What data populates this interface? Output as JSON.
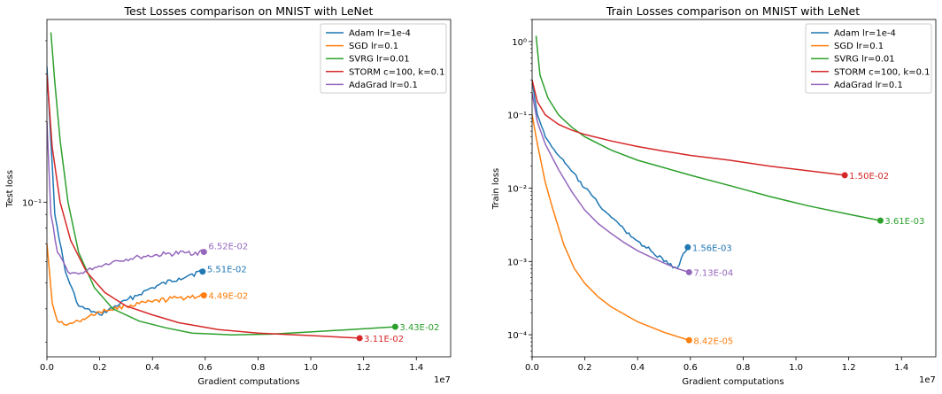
{
  "chart_data": [
    {
      "type": "line",
      "title": "Test Losses comparison on MNIST with LeNet",
      "xlabel": "Gradient computations",
      "ylabel": "Test loss",
      "x_offset_label": "1e7",
      "xlim": [
        0,
        15300000
      ],
      "ylim": [
        0.0265,
        0.48
      ],
      "yscale": "log",
      "xticks": [
        0,
        2000000,
        4000000,
        6000000,
        8000000,
        10000000,
        12000000,
        14000000
      ],
      "xtick_labels": [
        "0.0",
        "0.2",
        "0.4",
        "0.6",
        "0.8",
        "1.0",
        "1.2",
        "1.4"
      ],
      "yticks": [
        0.1
      ],
      "ytick_labels": [
        "10⁻¹"
      ],
      "legend_position": "top-right",
      "series": [
        {
          "name": "Adam lr=1e-4",
          "color": "#1f77b4",
          "noisy": true,
          "end_label": "5.51E-02",
          "x": [
            0,
            300000,
            700000,
            1200000,
            2000000,
            3000000,
            4000000,
            5000000,
            5500000,
            5900000
          ],
          "y": [
            0.32,
            0.09,
            0.055,
            0.041,
            0.038,
            0.043,
            0.048,
            0.052,
            0.054,
            0.0551
          ]
        },
        {
          "name": "SGD lr=0.1",
          "color": "#ff7f0e",
          "noisy": true,
          "end_label": "4.49E-02",
          "x": [
            0,
            200000,
            400000,
            800000,
            1200000,
            2000000,
            3000000,
            4000000,
            5000000,
            5950000
          ],
          "y": [
            0.07,
            0.042,
            0.036,
            0.035,
            0.036,
            0.039,
            0.041,
            0.0425,
            0.044,
            0.0449
          ]
        },
        {
          "name": "SVRG lr=0.01",
          "color": "#2ca02c",
          "noisy": false,
          "end_label": "3.43E-02",
          "x": [
            150000,
            300000,
            500000,
            800000,
            1200000,
            1800000,
            2500000,
            3500000,
            4500000,
            5500000,
            7000000,
            8500000,
            10000000,
            11500000,
            13200000
          ],
          "y": [
            0.43,
            0.28,
            0.17,
            0.1,
            0.065,
            0.048,
            0.04,
            0.036,
            0.034,
            0.0325,
            0.032,
            0.0322,
            0.0328,
            0.0335,
            0.0343
          ]
        },
        {
          "name": "STORM c=100, k=0.1",
          "color": "#d62728",
          "noisy": false,
          "end_label": "3.11E-02",
          "x": [
            0,
            200000,
            500000,
            900000,
            1500000,
            2200000,
            3000000,
            4000000,
            5000000,
            6500000,
            8000000,
            10000000,
            11850000
          ],
          "y": [
            0.3,
            0.16,
            0.1,
            0.072,
            0.055,
            0.046,
            0.041,
            0.038,
            0.0355,
            0.0335,
            0.0325,
            0.0318,
            0.0311
          ]
        },
        {
          "name": "AdaGrad lr=0.1",
          "color": "#9467bd",
          "noisy": true,
          "end_label": "6.52E-02",
          "x": [
            0,
            150000,
            400000,
            800000,
            1200000,
            1800000,
            2500000,
            3500000,
            4500000,
            5300000,
            5950000
          ],
          "y": [
            0.2,
            0.09,
            0.065,
            0.055,
            0.054,
            0.057,
            0.06,
            0.0625,
            0.064,
            0.0648,
            0.0652
          ]
        }
      ]
    },
    {
      "type": "line",
      "title": "Train Losses comparison on MNIST with LeNet",
      "xlabel": "Gradient computations",
      "ylabel": "Train loss",
      "x_offset_label": "1e7",
      "xlim": [
        0,
        15300000
      ],
      "ylim": [
        5e-05,
        2.0
      ],
      "yscale": "log",
      "xticks": [
        0,
        2000000,
        4000000,
        6000000,
        8000000,
        10000000,
        12000000,
        14000000
      ],
      "xtick_labels": [
        "0.0",
        "0.2",
        "0.4",
        "0.6",
        "0.8",
        "1.0",
        "1.2",
        "1.4"
      ],
      "yticks": [
        0.0001,
        0.001,
        0.01,
        0.1,
        1
      ],
      "ytick_labels": [
        "10⁻⁴",
        "10⁻³",
        "10⁻²",
        "10⁻¹",
        "10⁰"
      ],
      "legend_position": "top-right",
      "series": [
        {
          "name": "Adam lr=1e-4",
          "color": "#1f77b4",
          "noisy": true,
          "end_label": "1.56E-03",
          "x": [
            0,
            200000,
            500000,
            1000000,
            1500000,
            2000000,
            2500000,
            3000000,
            3500000,
            4000000,
            4500000,
            5000000,
            5500000,
            5900000
          ],
          "y": [
            0.3,
            0.1,
            0.05,
            0.028,
            0.017,
            0.01,
            0.0062,
            0.004,
            0.0027,
            0.0019,
            0.0014,
            0.001,
            0.0008,
            0.00156
          ]
        },
        {
          "name": "SGD lr=0.1",
          "color": "#ff7f0e",
          "noisy": false,
          "end_label": "8.42E-05",
          "x": [
            0,
            200000,
            500000,
            800000,
            1200000,
            1600000,
            2000000,
            2500000,
            3000000,
            4000000,
            5000000,
            5950000
          ],
          "y": [
            0.1,
            0.04,
            0.012,
            0.005,
            0.0017,
            0.0008,
            0.0005,
            0.00033,
            0.00024,
            0.00015,
            0.000108,
            8.42e-05
          ]
        },
        {
          "name": "SVRG lr=0.01",
          "color": "#2ca02c",
          "noisy": false,
          "end_label": "3.61E-03",
          "x": [
            150000,
            300000,
            600000,
            1000000,
            1500000,
            2000000,
            3000000,
            4000000,
            5000000,
            6000000,
            7500000,
            9000000,
            10500000,
            12000000,
            13200000
          ],
          "y": [
            1.2,
            0.35,
            0.17,
            0.1,
            0.068,
            0.05,
            0.033,
            0.024,
            0.019,
            0.015,
            0.0108,
            0.0077,
            0.0057,
            0.0044,
            0.00361
          ]
        },
        {
          "name": "STORM c=100, k=0.1",
          "color": "#d62728",
          "noisy": false,
          "end_label": "1.50E-02",
          "x": [
            0,
            200000,
            500000,
            1000000,
            1500000,
            2000000,
            3000000,
            4000000,
            5000000,
            6000000,
            7500000,
            9000000,
            10500000,
            11850000
          ],
          "y": [
            0.3,
            0.15,
            0.1,
            0.074,
            0.062,
            0.054,
            0.044,
            0.037,
            0.032,
            0.028,
            0.024,
            0.02,
            0.0172,
            0.015
          ]
        },
        {
          "name": "AdaGrad lr=0.1",
          "color": "#9467bd",
          "noisy": false,
          "end_label": "7.13E-04",
          "x": [
            0,
            200000,
            500000,
            1000000,
            1500000,
            2000000,
            2500000,
            3000000,
            3500000,
            4000000,
            4500000,
            5000000,
            5500000,
            5950000
          ],
          "y": [
            0.2,
            0.08,
            0.04,
            0.018,
            0.009,
            0.005,
            0.0033,
            0.0024,
            0.0018,
            0.0014,
            0.00115,
            0.00095,
            0.0008,
            0.000713
          ]
        }
      ]
    }
  ]
}
